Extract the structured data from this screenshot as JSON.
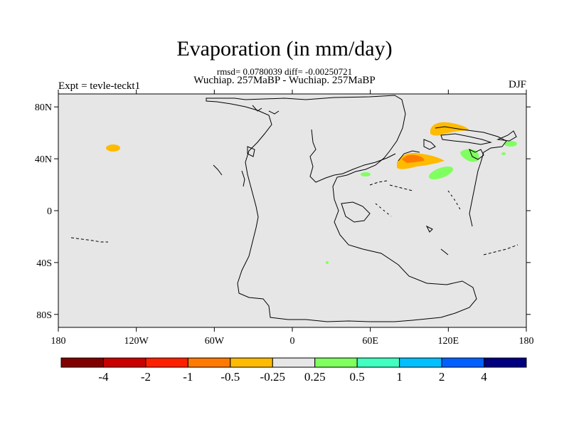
{
  "header": {
    "title": "Evaporation (in mm/day)",
    "stats": "rmsd= 0.0780039 diff= -0.00250721",
    "comparison": "Wuchiap. 257MaBP - Wuchiap. 257MaBP",
    "experiment": "Expt = tevle-teckt1",
    "season": "DJF"
  },
  "map": {
    "projection": "cylindrical-equidistant",
    "lon_range": [
      -180,
      180
    ],
    "lat_range": [
      -90,
      90
    ],
    "background_color": "#e6e6e6",
    "coastline_color": "#000000",
    "lat_ticks": [
      {
        "value": 80,
        "label": "80N"
      },
      {
        "value": 40,
        "label": "40N"
      },
      {
        "value": 0,
        "label": "0"
      },
      {
        "value": -40,
        "label": "40S"
      },
      {
        "value": -80,
        "label": "80S"
      }
    ],
    "lon_ticks": [
      {
        "value": -180,
        "label": "180"
      },
      {
        "value": -120,
        "label": "120W"
      },
      {
        "value": -60,
        "label": "60W"
      },
      {
        "value": 0,
        "label": "0"
      },
      {
        "value": 60,
        "label": "60E"
      },
      {
        "value": 120,
        "label": "120E"
      },
      {
        "value": 180,
        "label": "180"
      }
    ]
  },
  "colorbar": {
    "colors": [
      "#800000",
      "#c80000",
      "#ff2000",
      "#ff7a00",
      "#ffbb00",
      "#e6e6e6",
      "#80ff60",
      "#40ffc0",
      "#00c0ff",
      "#0060ff",
      "#000080"
    ],
    "labels": [
      "-4",
      "-2",
      "-1",
      "-0.5",
      "-0.25",
      "0.25",
      "0.5",
      "1",
      "2",
      "4"
    ]
  },
  "chart_data": {
    "type": "heatmap",
    "variable": "Evaporation difference",
    "units": "mm/day",
    "rmsd": 0.0780039,
    "diff": -0.00250721,
    "anomaly_regions": [
      {
        "lon": -139,
        "lat": 48,
        "value": -0.25
      },
      {
        "lon": 124,
        "lat": 62,
        "value": -0.25
      },
      {
        "lon": 94,
        "lat": 38,
        "value": -0.5
      },
      {
        "lon": 91,
        "lat": 40,
        "value": -1
      },
      {
        "lon": 119,
        "lat": 30,
        "value": 0.25
      },
      {
        "lon": 134,
        "lat": 41,
        "value": 0.25
      },
      {
        "lon": 56,
        "lat": 27,
        "value": 0.25
      },
      {
        "lon": 168,
        "lat": 50,
        "value": 0.25
      },
      {
        "lon": 27,
        "lat": -40,
        "value": 0.25
      }
    ]
  }
}
